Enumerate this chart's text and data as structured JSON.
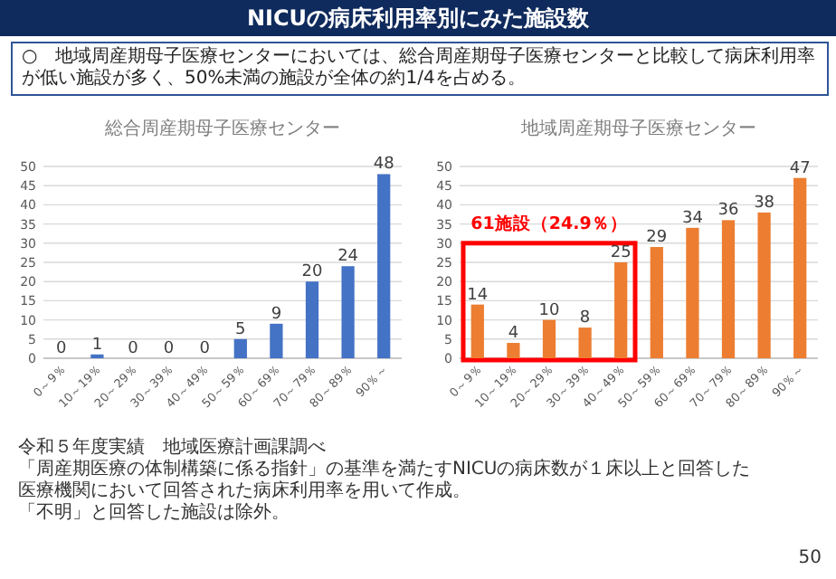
{
  "chart_data": [
    {
      "type": "bar",
      "title": "総合周産期母子医療センター",
      "categories": [
        "0～9％",
        "10～19％",
        "20～29％",
        "30～39％",
        "40～49％",
        "50～59％",
        "60～69％",
        "70～79％",
        "80～89％",
        "90％～"
      ],
      "values": [
        0,
        1,
        0,
        0,
        0,
        5,
        9,
        20,
        24,
        48
      ],
      "color": "#4472c4",
      "ylim": [
        0,
        50
      ],
      "yticks": [
        0,
        5,
        10,
        15,
        20,
        25,
        30,
        35,
        40,
        45,
        50
      ],
      "grid": "y",
      "data_labels": true,
      "annotations": [
        "NICUの病床利用率別にみた施設数",
        "○　地域周産期母子医療センターにおいては、総合周産期母子医療センターと比較して病床利用率が低い施設が多く、50%未満の施設が全体の約1/4を占める。"
      ]
    },
    {
      "type": "bar",
      "title": "地域周産期母子医療センター",
      "categories": [
        "0～9％",
        "10～19％",
        "20～29％",
        "30～39％",
        "40～49％",
        "50～59％",
        "60～69％",
        "70～79％",
        "80～89％",
        "90％～"
      ],
      "values": [
        14,
        4,
        10,
        8,
        25,
        29,
        34,
        36,
        38,
        47
      ],
      "color": "#ed7d31",
      "ylim": [
        0,
        50
      ],
      "yticks": [
        0,
        5,
        10,
        15,
        20,
        25,
        30,
        35,
        40,
        45,
        50
      ],
      "grid": "y",
      "data_labels": true,
      "annotations": [
        "61施設（24.9％）",
        "令和５年度実績　地域医療計画課調べ",
        "「周産期医療の体制構築に係る指針」の基準を満たすNICUの病床数が１床以上と回答した医療機関において回答された病床利用率を用いて作成。",
        "「不明」と回答した施設は除外。",
        "50"
      ]
    }
  ]
}
